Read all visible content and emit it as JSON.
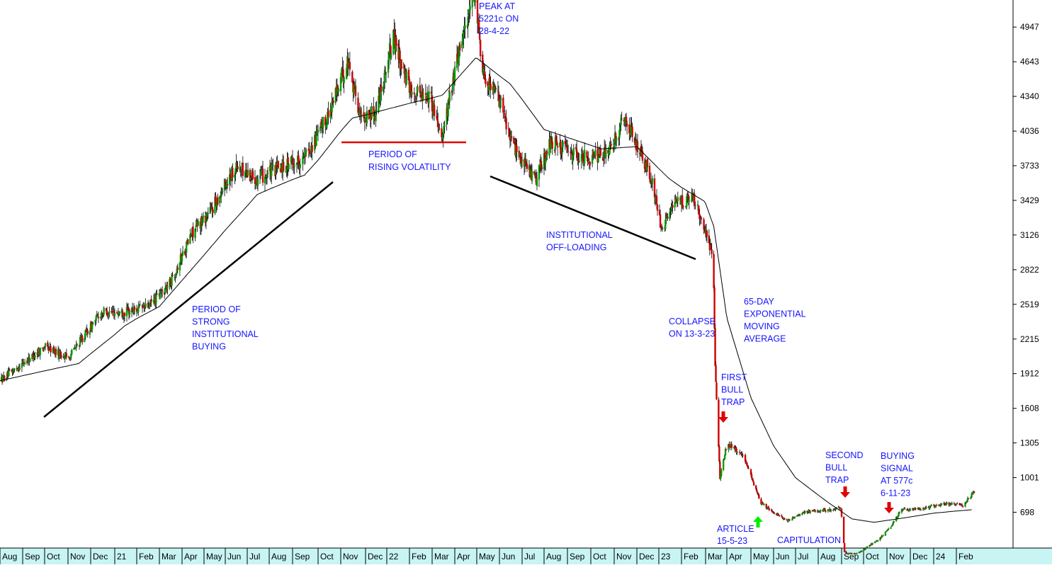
{
  "chart_data": {
    "type": "candlestick",
    "title": "",
    "y_axis": {
      "ticks": [
        698,
        1001,
        1305,
        1608,
        1912,
        2215,
        2519,
        2822,
        3126,
        3429,
        3733,
        4036,
        4340,
        4643,
        4947
      ],
      "position": "right",
      "ylim": [
        210,
        5290
      ]
    },
    "x_axis": {
      "labels": [
        "Aug",
        "Sep",
        "Oct",
        "Nov",
        "Dec",
        "21",
        "Feb",
        "Mar",
        "Apr",
        "May",
        "Jun",
        "Jul",
        "Aug",
        "Sep",
        "Oct",
        "Nov",
        "Dec",
        "22",
        "Feb",
        "Mar",
        "Apr",
        "May",
        "Jun",
        "Jul",
        "Aug",
        "Sep",
        "Oct",
        "Nov",
        "Dec",
        "23",
        "Feb",
        "Mar",
        "Apr",
        "May",
        "Jun",
        "Jul",
        "Aug",
        "Sep",
        "Oct",
        "Nov",
        "Dec",
        "24",
        "Feb"
      ],
      "start": "2020-08",
      "end": "2024-02"
    },
    "series": [
      {
        "role": "price",
        "style": "candlestick",
        "approx_path": [
          [
            "2020-08-01",
            1850
          ],
          [
            "2020-09-01",
            2000
          ],
          [
            "2020-10-01",
            2150
          ],
          [
            "2020-11-01",
            2050
          ],
          [
            "2020-12-15",
            2450
          ],
          [
            "2021-01-15",
            2450
          ],
          [
            "2021-02-15",
            2500
          ],
          [
            "2021-03-15",
            2700
          ],
          [
            "2021-04-15",
            3150
          ],
          [
            "2021-05-15",
            3380
          ],
          [
            "2021-06-15",
            3730
          ],
          [
            "2021-07-15",
            3620
          ],
          [
            "2021-08-15",
            3720
          ],
          [
            "2021-09-15",
            3800
          ],
          [
            "2021-10-15",
            4180
          ],
          [
            "2021-11-10",
            4650
          ],
          [
            "2021-11-25",
            4150
          ],
          [
            "2021-12-15",
            4200
          ],
          [
            "2022-01-10",
            4850
          ],
          [
            "2022-02-01",
            4400
          ],
          [
            "2022-02-25",
            4350
          ],
          [
            "2022-03-15",
            4000
          ],
          [
            "2022-04-10",
            4850
          ],
          [
            "2022-04-28",
            5221
          ],
          [
            "2022-05-10",
            4550
          ],
          [
            "2022-06-01",
            4300
          ],
          [
            "2022-06-20",
            3900
          ],
          [
            "2022-07-20",
            3600
          ],
          [
            "2022-08-10",
            3950
          ],
          [
            "2022-09-01",
            3850
          ],
          [
            "2022-10-01",
            3800
          ],
          [
            "2022-10-25",
            3850
          ],
          [
            "2022-11-15",
            4150
          ],
          [
            "2022-12-01",
            3900
          ],
          [
            "2022-12-20",
            3650
          ],
          [
            "2023-01-05",
            3180
          ],
          [
            "2023-01-25",
            3400
          ],
          [
            "2023-02-15",
            3450
          ],
          [
            "2023-02-28",
            3200
          ],
          [
            "2023-03-10",
            2950
          ],
          [
            "2023-03-13",
            2700
          ],
          [
            "2023-03-15",
            1950
          ],
          [
            "2023-03-22",
            1000
          ],
          [
            "2023-04-01",
            1300
          ],
          [
            "2023-04-20",
            1200
          ],
          [
            "2023-05-15",
            780
          ],
          [
            "2023-06-01",
            700
          ],
          [
            "2023-06-20",
            620
          ],
          [
            "2023-07-15",
            700
          ],
          [
            "2023-08-15",
            720
          ],
          [
            "2023-08-31",
            740
          ],
          [
            "2023-09-05",
            350
          ],
          [
            "2023-09-20",
            330
          ],
          [
            "2023-10-20",
            450
          ],
          [
            "2023-11-06",
            577
          ],
          [
            "2023-11-20",
            720
          ],
          [
            "2023-12-15",
            730
          ],
          [
            "2024-01-15",
            770
          ],
          [
            "2024-02-10",
            760
          ],
          [
            "2024-02-25",
            900
          ]
        ]
      },
      {
        "name": "65-DAY EXPONENTIAL MOVING AVERAGE",
        "style": "line",
        "approx_path": [
          [
            "2020-08-01",
            1850
          ],
          [
            "2020-11-15",
            2000
          ],
          [
            "2021-01-15",
            2330
          ],
          [
            "2021-03-01",
            2500
          ],
          [
            "2021-05-01",
            2950
          ],
          [
            "2021-07-15",
            3480
          ],
          [
            "2021-09-15",
            3650
          ],
          [
            "2021-11-15",
            4150
          ],
          [
            "2022-01-15",
            4250
          ],
          [
            "2022-03-15",
            4350
          ],
          [
            "2022-04-30",
            4680
          ],
          [
            "2022-06-15",
            4450
          ],
          [
            "2022-08-01",
            4050
          ],
          [
            "2022-10-15",
            3880
          ],
          [
            "2022-12-01",
            3900
          ],
          [
            "2023-01-15",
            3620
          ],
          [
            "2023-02-28",
            3420
          ],
          [
            "2023-03-13",
            3200
          ],
          [
            "2023-04-01",
            2400
          ],
          [
            "2023-05-01",
            1700
          ],
          [
            "2023-06-01",
            1280
          ],
          [
            "2023-07-01",
            1000
          ],
          [
            "2023-08-15",
            780
          ],
          [
            "2023-09-15",
            640
          ],
          [
            "2023-10-15",
            610
          ],
          [
            "2023-11-15",
            640
          ],
          [
            "2024-01-01",
            690
          ],
          [
            "2024-02-20",
            720
          ]
        ]
      }
    ],
    "annotations": [
      {
        "id": "peak",
        "lines": [
          "PEAK AT",
          "5221c ON",
          "28-4-22"
        ]
      },
      {
        "id": "volatility",
        "lines": [
          "PERIOD OF",
          "RISING VOLATILITY"
        ]
      },
      {
        "id": "buying",
        "lines": [
          "PERIOD OF",
          "STRONG",
          "INSTITUTIONAL",
          "BUYING"
        ]
      },
      {
        "id": "offloading",
        "lines": [
          "INSTITUTIONAL",
          "OFF-LOADING"
        ]
      },
      {
        "id": "collapse",
        "lines": [
          "COLLAPSE",
          "ON 13-3-23"
        ]
      },
      {
        "id": "ema",
        "lines": [
          "65-DAY",
          "EXPONENTIAL",
          "MOVING",
          "AVERAGE"
        ]
      },
      {
        "id": "first_trap",
        "lines": [
          "FIRST",
          "BULL",
          "TRAP"
        ]
      },
      {
        "id": "second_trap",
        "lines": [
          "SECOND",
          "BULL",
          "TRAP"
        ]
      },
      {
        "id": "buy_signal",
        "lines": [
          "BUYING",
          "SIGNAL",
          "AT 577c",
          "6-11-23"
        ]
      },
      {
        "id": "article",
        "lines": [
          "ARTICLE",
          "15-5-23"
        ]
      },
      {
        "id": "capitulation",
        "lines": [
          "CAPITULATION"
        ]
      }
    ],
    "colors": {
      "up_candle": "#00a000",
      "down_candle": "#d00000",
      "annotation_text": "#1515ff",
      "trendline": "#000000",
      "resistance_line": "#e00000",
      "down_arrow": "#e00000",
      "up_arrow": "#00ee00",
      "axis_background": "#c8f4f4",
      "moving_average": "#000000"
    },
    "grid": false,
    "legend": "none"
  }
}
